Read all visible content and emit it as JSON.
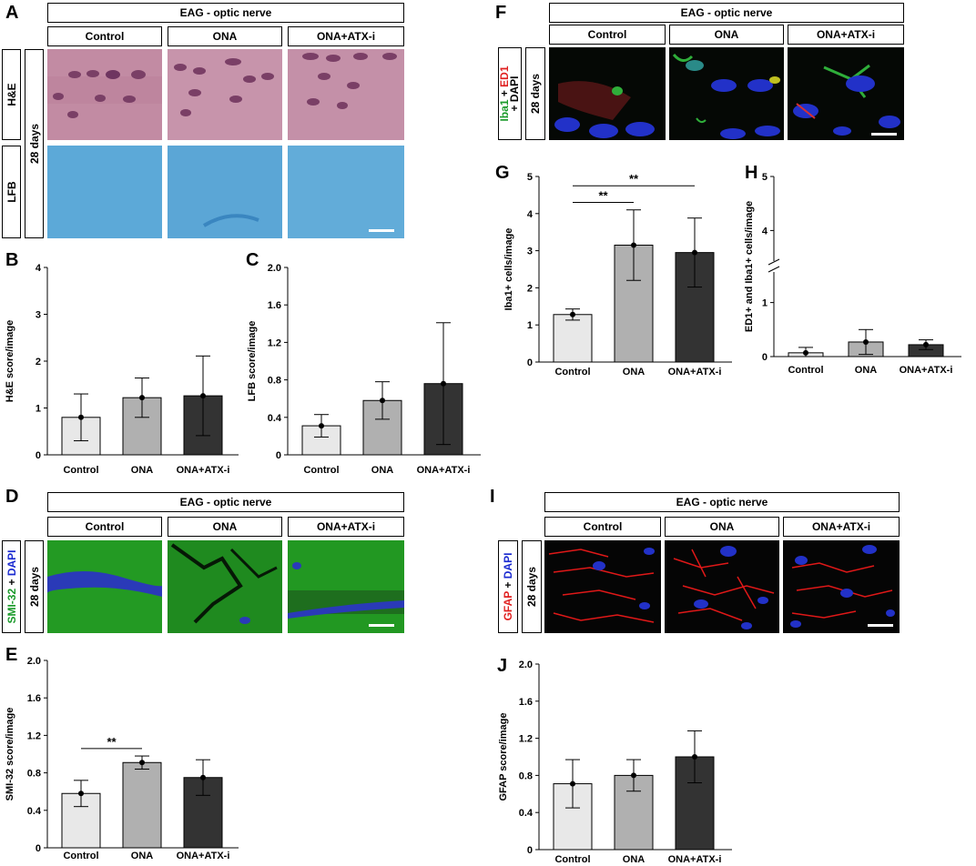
{
  "panels": {
    "A": "A",
    "B": "B",
    "C": "C",
    "D": "D",
    "E": "E",
    "F": "F",
    "G": "G",
    "H": "H",
    "I": "I",
    "J": "J"
  },
  "header": "EAG - optic nerve",
  "groups": [
    "Control",
    "ONA",
    "ONA+ATX-i"
  ],
  "timepoint": "28 days",
  "row_labels": {
    "he": "H&E",
    "lfb": "LFB",
    "iba1": "Iba1",
    "ed1": "ED1",
    "dapi": "+ DAPI",
    "smi32": "SMI-32",
    "gfap": "GFAP",
    "plus": " + ",
    "dapi_short": "DAPI"
  },
  "colors": {
    "control_bar": "#e8e8e8",
    "ona_bar": "#b0b0b0",
    "atx_bar": "#333333",
    "he_tissue": "#c08aa2",
    "lfb_tissue": "#5aa8d8",
    "smi_green": "#1f9a1f",
    "nucleus_blue": "#2a3ad8",
    "gfap_red": "#e01818"
  },
  "chart_data": [
    {
      "id": "B",
      "type": "bar",
      "categories": [
        "Control",
        "ONA",
        "ONA+ATX-i"
      ],
      "values": [
        0.8,
        1.22,
        1.26
      ],
      "errors": [
        0.5,
        0.42,
        0.85
      ],
      "ylabel": "H&E score/image",
      "ylim": [
        0,
        4
      ],
      "yticks": [
        "0",
        "1",
        "2",
        "3",
        "4"
      ],
      "significance": []
    },
    {
      "id": "C",
      "type": "bar",
      "categories": [
        "Control",
        "ONA",
        "ONA+ATX-i"
      ],
      "values": [
        0.31,
        0.58,
        0.76
      ],
      "errors": [
        0.12,
        0.2,
        0.65
      ],
      "ylabel": "LFB score/image",
      "ylim": [
        0,
        2.0
      ],
      "yticks": [
        "0",
        "0.4",
        "0.8",
        "1.2",
        "1.6",
        "2.0"
      ],
      "significance": []
    },
    {
      "id": "E",
      "type": "bar",
      "categories": [
        "Control",
        "ONA",
        "ONA+ATX-i"
      ],
      "values": [
        0.58,
        0.91,
        0.75
      ],
      "errors": [
        0.14,
        0.07,
        0.19
      ],
      "ylabel": "SMI-32 score/image",
      "ylim": [
        0,
        2.0
      ],
      "yticks": [
        "0",
        "0.4",
        "0.8",
        "1.2",
        "1.6",
        "2.0"
      ],
      "significance": [
        {
          "from": 0,
          "to": 1,
          "label": "**"
        }
      ]
    },
    {
      "id": "G",
      "type": "bar",
      "categories": [
        "Control",
        "ONA",
        "ONA+ATX-i"
      ],
      "values": [
        1.28,
        3.15,
        2.95
      ],
      "errors": [
        0.15,
        0.95,
        0.93
      ],
      "ylabel": "Iba1+ cells/image",
      "ylim": [
        0,
        5
      ],
      "yticks": [
        "0",
        "1",
        "2",
        "3",
        "4",
        "5"
      ],
      "significance": [
        {
          "from": 0,
          "to": 1,
          "label": "**"
        },
        {
          "from": 0,
          "to": 2,
          "label": "**"
        }
      ]
    },
    {
      "id": "H",
      "type": "bar",
      "categories": [
        "Control",
        "ONA",
        "ONA+ATX-i"
      ],
      "values": [
        0.07,
        0.27,
        0.22
      ],
      "errors": [
        0.1,
        0.23,
        0.09
      ],
      "ylabel": "ED1+ and Iba1+ cells/image",
      "ylim": [
        0,
        5
      ],
      "yticks": [
        "0",
        "1",
        "4",
        "5"
      ],
      "axis_break": [
        1.4,
        3.6
      ],
      "significance": []
    },
    {
      "id": "J",
      "type": "bar",
      "categories": [
        "Control",
        "ONA",
        "ONA+ATX-i"
      ],
      "values": [
        0.71,
        0.8,
        1.0
      ],
      "errors": [
        0.26,
        0.17,
        0.28
      ],
      "ylabel": "GFAP score/image",
      "ylim": [
        0,
        2.0
      ],
      "yticks": [
        "0",
        "0.4",
        "0.8",
        "1.2",
        "1.6",
        "2.0"
      ],
      "significance": []
    }
  ]
}
